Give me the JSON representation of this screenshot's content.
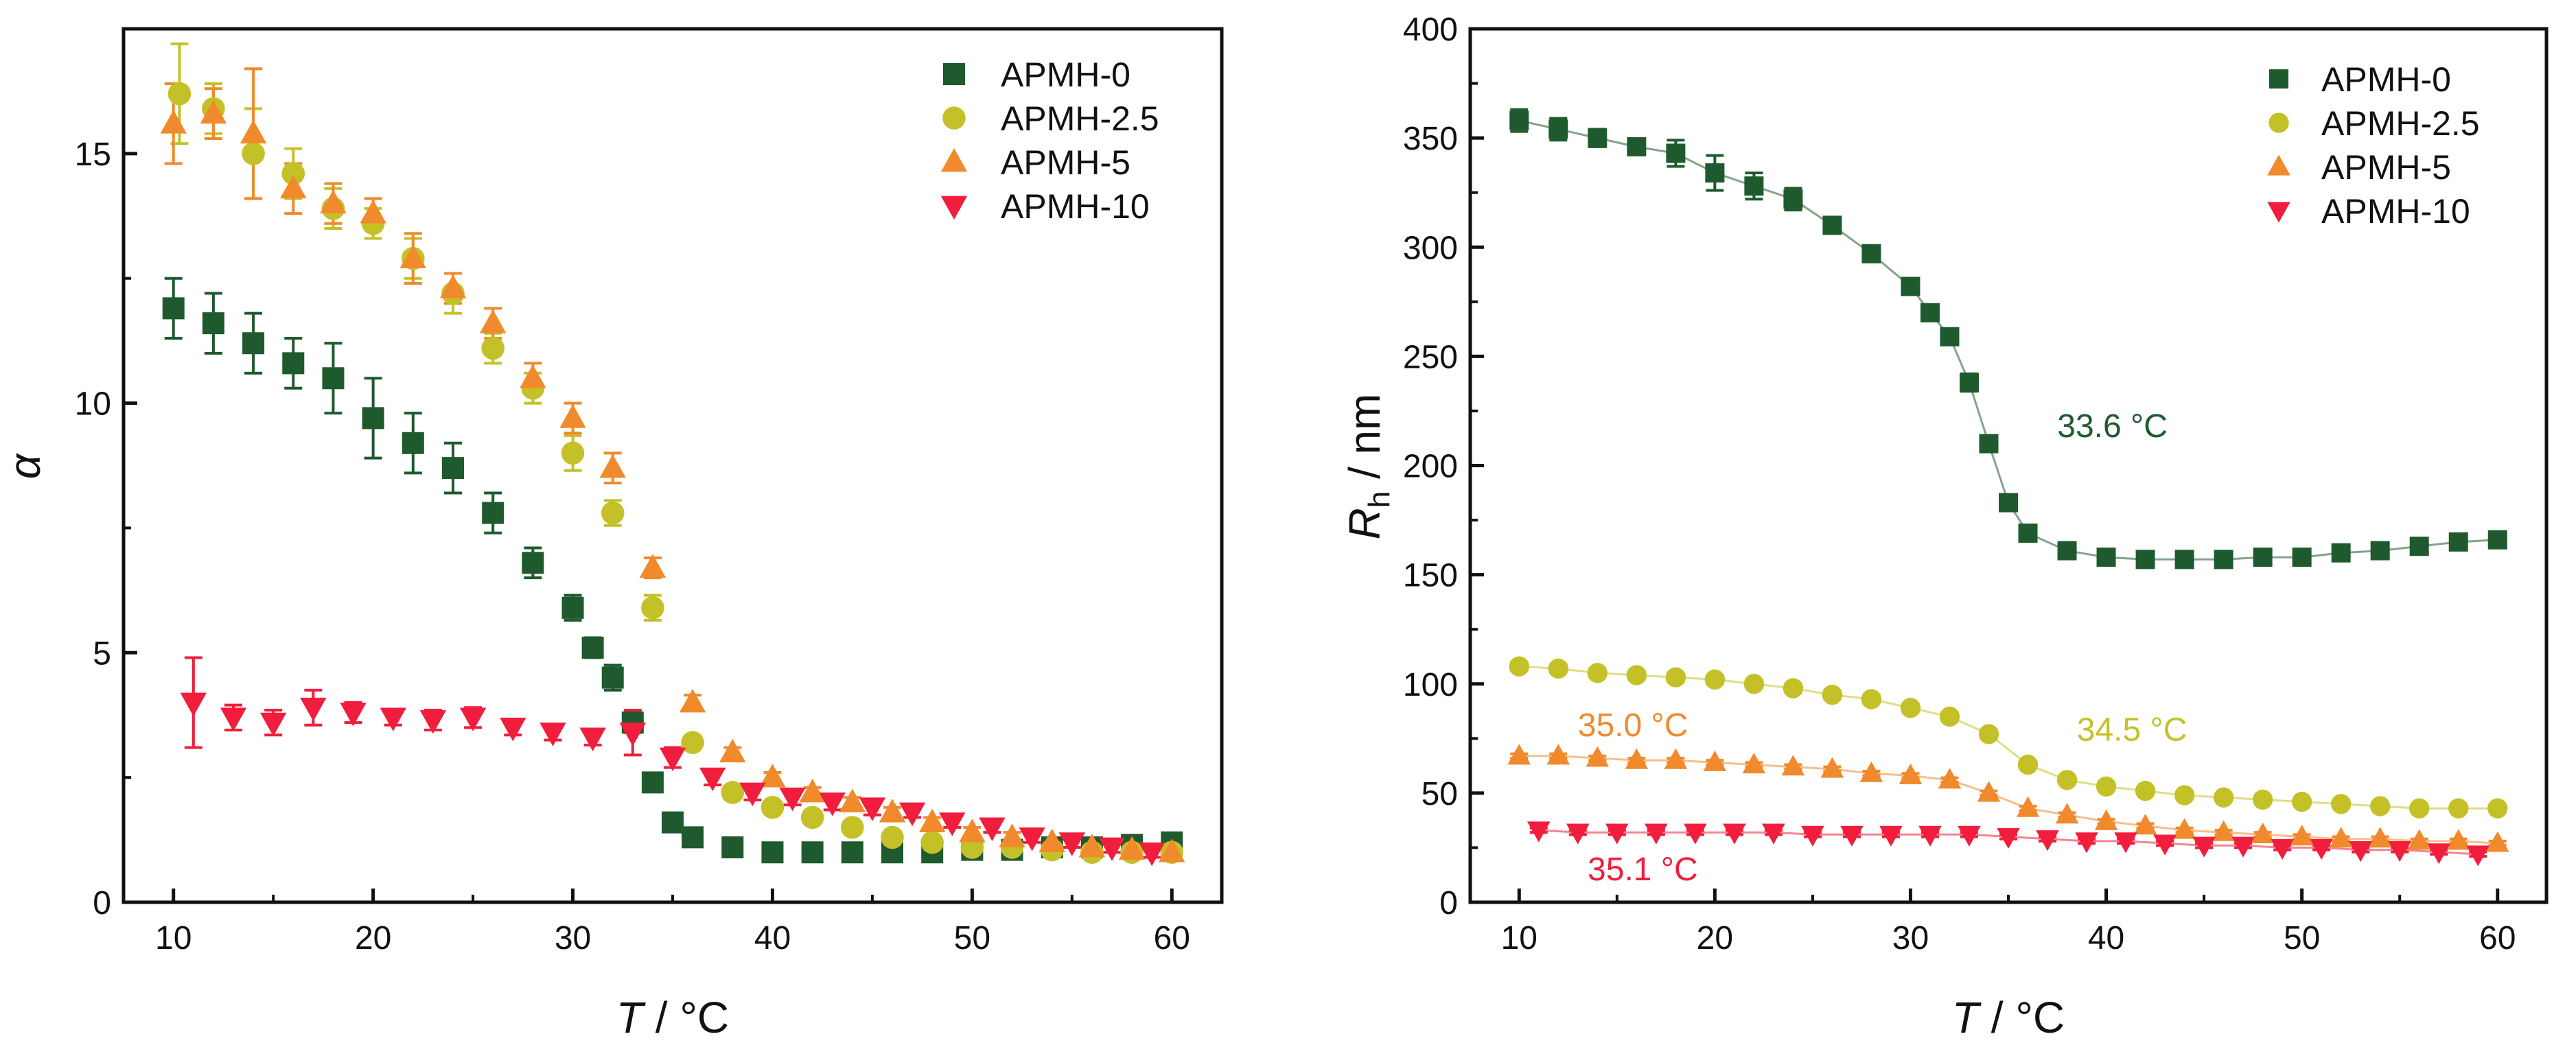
{
  "colors": {
    "APMH-0": "#1e5a2e",
    "APMH-2.5": "#c4c128",
    "APMH-5": "#f08a2c",
    "APMH-10": "#f01e3c",
    "axis": "#111111"
  },
  "chart_data": [
    {
      "type": "scatter",
      "panel": "left",
      "ylabel_symbol": "α",
      "xlabel_var": "T",
      "xlabel_unit": " / °C",
      "xlim": [
        7.5,
        62.5
      ],
      "ylim": [
        0,
        17.5
      ],
      "xticks": [
        10,
        20,
        30,
        40,
        50,
        60
      ],
      "yticks": [
        0,
        5,
        10,
        15
      ],
      "legend_position": "top-right",
      "series": [
        {
          "name": "APMH-0",
          "marker": "square",
          "x": [
            10,
            12,
            14,
            16,
            18,
            20,
            22,
            24,
            26,
            28,
            30,
            31,
            32,
            33,
            34,
            35,
            36,
            38,
            40,
            42,
            44,
            46,
            48,
            50,
            52,
            54,
            56,
            58,
            60
          ],
          "y": [
            11.9,
            11.6,
            11.2,
            10.8,
            10.5,
            9.7,
            9.2,
            8.7,
            7.8,
            6.8,
            5.9,
            5.1,
            4.5,
            3.6,
            2.4,
            1.6,
            1.3,
            1.1,
            1.0,
            1.0,
            1.0,
            1.0,
            1.0,
            1.05,
            1.05,
            1.1,
            1.1,
            1.15,
            1.2
          ],
          "err": [
            0.6,
            0.6,
            0.6,
            0.5,
            0.7,
            0.8,
            0.6,
            0.5,
            0.4,
            0.3,
            0.25,
            0.2,
            0.25,
            0.2,
            0.15,
            0.1,
            0.1,
            0.05,
            0.05,
            0.05,
            0.05,
            0.05,
            0.05,
            0.05,
            0.05,
            0.05,
            0.05,
            0.05,
            0.1
          ]
        },
        {
          "name": "APMH-2.5",
          "marker": "circle",
          "x": [
            10.3,
            12,
            14,
            16,
            18,
            20,
            22,
            24,
            26,
            28,
            30,
            32,
            34,
            36,
            38,
            40,
            42,
            44,
            46,
            48,
            50,
            52,
            54,
            56,
            58,
            60
          ],
          "y": [
            16.2,
            15.9,
            15.0,
            14.6,
            13.9,
            13.6,
            12.9,
            12.2,
            11.1,
            10.3,
            9.0,
            7.8,
            5.9,
            3.2,
            2.2,
            1.9,
            1.7,
            1.5,
            1.3,
            1.2,
            1.1,
            1.1,
            1.05,
            1.0,
            1.0,
            1.0
          ],
          "err": [
            1.0,
            0.5,
            0.9,
            0.5,
            0.4,
            0.3,
            0.4,
            0.4,
            0.3,
            0.3,
            0.35,
            0.25,
            0.25,
            0.1,
            0.1,
            0.1,
            0.1,
            0.1,
            0.1,
            0.1,
            0.05,
            0.05,
            0.05,
            0.05,
            0.05,
            0.05
          ]
        },
        {
          "name": "APMH-5",
          "marker": "triangle-up",
          "x": [
            10,
            12,
            14,
            16,
            18,
            20,
            22,
            24,
            26,
            28,
            30,
            32,
            34,
            36,
            38,
            40,
            42,
            44,
            46,
            48,
            50,
            52,
            54,
            56,
            58,
            60
          ],
          "y": [
            15.6,
            15.8,
            15.4,
            14.3,
            14.0,
            13.8,
            12.9,
            12.3,
            11.6,
            10.5,
            9.7,
            8.7,
            6.7,
            4.0,
            3.0,
            2.5,
            2.2,
            2.0,
            1.8,
            1.6,
            1.4,
            1.3,
            1.2,
            1.1,
            1.05,
            1.0
          ],
          "err": [
            0.8,
            0.5,
            1.3,
            0.5,
            0.4,
            0.3,
            0.5,
            0.3,
            0.3,
            0.3,
            0.3,
            0.3,
            0.2,
            0.15,
            0.1,
            0.1,
            0.1,
            0.1,
            0.1,
            0.1,
            0.1,
            0.1,
            0.05,
            0.05,
            0.05,
            0.05
          ]
        },
        {
          "name": "APMH-10",
          "marker": "triangle-down",
          "x": [
            11,
            13,
            15,
            17,
            19,
            21,
            23,
            25,
            27,
            29,
            31,
            33,
            35,
            37,
            39,
            41,
            43,
            45,
            47,
            49,
            51,
            53,
            55,
            57,
            59
          ],
          "y": [
            4.0,
            3.7,
            3.6,
            3.9,
            3.8,
            3.7,
            3.65,
            3.7,
            3.5,
            3.4,
            3.3,
            3.4,
            2.9,
            2.5,
            2.2,
            2.1,
            2.0,
            1.9,
            1.8,
            1.6,
            1.5,
            1.3,
            1.2,
            1.1,
            1.0
          ],
          "err": [
            0.9,
            0.25,
            0.25,
            0.35,
            0.2,
            0.15,
            0.2,
            0.2,
            0.15,
            0.15,
            0.15,
            0.45,
            0.2,
            0.15,
            0.15,
            0.15,
            0.15,
            0.15,
            0.1,
            0.1,
            0.1,
            0.1,
            0.1,
            0.1,
            0.1
          ]
        }
      ]
    },
    {
      "type": "line",
      "panel": "right",
      "ylabel_var": "R",
      "ylabel_sub": "h",
      "ylabel_unit": " / nm",
      "xlabel_var": "T",
      "xlabel_unit": " / °C",
      "xlim": [
        7.5,
        62.5
      ],
      "ylim": [
        0,
        400
      ],
      "xticks": [
        10,
        20,
        30,
        40,
        50,
        60
      ],
      "yticks": [
        0,
        50,
        100,
        150,
        200,
        250,
        300,
        350,
        400
      ],
      "legend_position": "top-right",
      "annotations": [
        {
          "text": "33.6 °C",
          "series": "APMH-0",
          "x": 37.5,
          "y": 213
        },
        {
          "text": "34.5 °C",
          "series": "APMH-2.5",
          "x": 38.5,
          "y": 74
        },
        {
          "text": "35.0 °C",
          "series": "APMH-5",
          "x": 13,
          "y": 76
        },
        {
          "text": "35.1 °C",
          "series": "APMH-10",
          "x": 13.5,
          "y": 10
        }
      ],
      "series": [
        {
          "name": "APMH-0",
          "marker": "square",
          "x": [
            10,
            12,
            14,
            16,
            18,
            20,
            22,
            24,
            26,
            28,
            30,
            31,
            32,
            33,
            34,
            35,
            36,
            38,
            40,
            42,
            44,
            46,
            48,
            50,
            52,
            54,
            56,
            58,
            60
          ],
          "y": [
            358,
            354,
            350,
            346,
            343,
            334,
            328,
            322,
            310,
            297,
            282,
            270,
            259,
            238,
            210,
            183,
            169,
            161,
            158,
            157,
            157,
            157,
            158,
            158,
            160,
            161,
            163,
            165,
            166
          ],
          "err": [
            5,
            5,
            4,
            3,
            6,
            8,
            6,
            5,
            3,
            3,
            2,
            2,
            3,
            4,
            3,
            2,
            2,
            1,
            1,
            1,
            1,
            1,
            1,
            1,
            1,
            1,
            1,
            1,
            1
          ]
        },
        {
          "name": "APMH-2.5",
          "marker": "circle",
          "x": [
            10,
            12,
            14,
            16,
            18,
            20,
            22,
            24,
            26,
            28,
            30,
            32,
            34,
            36,
            38,
            40,
            42,
            44,
            46,
            48,
            50,
            52,
            54,
            56,
            58,
            60
          ],
          "y": [
            108,
            107,
            105,
            104,
            103,
            102,
            100,
            98,
            95,
            93,
            89,
            85,
            77,
            63,
            56,
            53,
            51,
            49,
            48,
            47,
            46,
            45,
            44,
            43,
            43,
            43
          ],
          "err": [
            2,
            2,
            2,
            2,
            2,
            2,
            2,
            2,
            2,
            2,
            2,
            2,
            2,
            1,
            1,
            1,
            1,
            1,
            1,
            1,
            1,
            1,
            1,
            1,
            1,
            1
          ]
        },
        {
          "name": "APMH-5",
          "marker": "triangle-up",
          "x": [
            10,
            12,
            14,
            16,
            18,
            20,
            22,
            24,
            26,
            28,
            30,
            32,
            34,
            36,
            38,
            40,
            42,
            44,
            46,
            48,
            50,
            52,
            54,
            56,
            58,
            60
          ],
          "y": [
            67,
            67,
            66,
            65,
            65,
            64,
            63,
            62,
            61,
            59,
            58,
            56,
            50,
            43,
            40,
            37,
            35,
            33,
            32,
            31,
            30,
            29,
            29,
            28,
            28,
            27
          ],
          "err": [
            1,
            1,
            1,
            1,
            1,
            1,
            1,
            1,
            1,
            1,
            1,
            1,
            1,
            1,
            1,
            1,
            1,
            1,
            1,
            1,
            1,
            1,
            1,
            1,
            1,
            1
          ]
        },
        {
          "name": "APMH-10",
          "marker": "triangle-down",
          "x": [
            11,
            13,
            15,
            17,
            19,
            21,
            23,
            25,
            27,
            29,
            31,
            33,
            35,
            37,
            39,
            41,
            43,
            45,
            47,
            49,
            51,
            53,
            55,
            57,
            59
          ],
          "y": [
            33,
            32,
            32,
            32,
            32,
            32,
            32,
            31,
            31,
            31,
            31,
            31,
            30,
            29,
            28,
            28,
            27,
            26,
            26,
            25,
            25,
            24,
            24,
            23,
            22
          ],
          "err": [
            1,
            1,
            1,
            1,
            1,
            1,
            1,
            1,
            1,
            1,
            1,
            1,
            1,
            1,
            1,
            1,
            1,
            1,
            1,
            1,
            1,
            1,
            1,
            1,
            1
          ]
        }
      ]
    }
  ]
}
